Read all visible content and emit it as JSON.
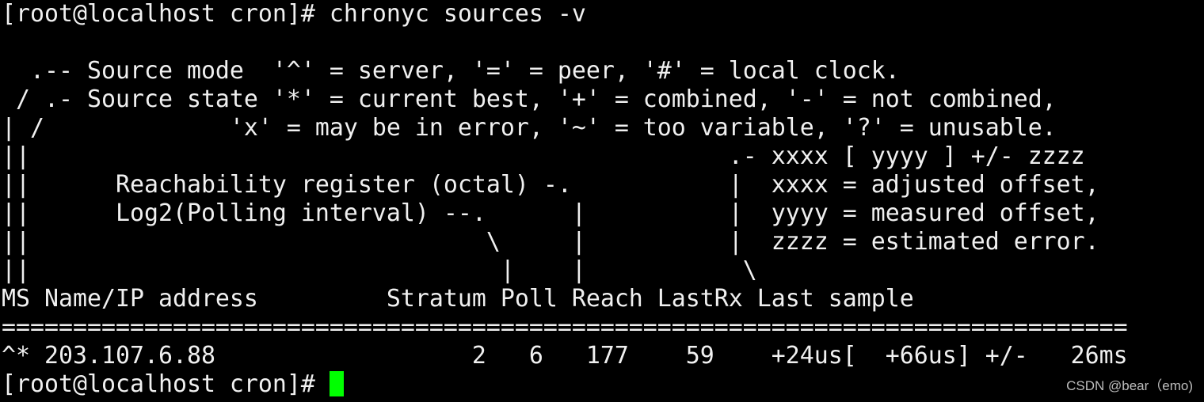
{
  "terminal": {
    "lines": [
      "[root@localhost cron]# chronyc sources -v",
      "",
      "  .-- Source mode  '^' = server, '=' = peer, '#' = local clock.",
      " / .- Source state '*' = current best, '+' = combined, '-' = not combined,",
      "| /             'x' = may be in error, '~' = too variable, '?' = unusable.",
      "||                                                 .- xxxx [ yyyy ] +/- zzzz",
      "||      Reachability register (octal) -.           |  xxxx = adjusted offset,",
      "||      Log2(Polling interval) --.      |          |  yyyy = measured offset,",
      "||                                \\     |          |  zzzz = estimated error.",
      "||                                 |    |           \\",
      "MS Name/IP address         Stratum Poll Reach LastRx Last sample",
      "===============================================================================",
      "^* 203.107.6.88                  2   6   177    59    +24us[  +66us] +/-   26ms"
    ],
    "prompt": "[root@localhost cron]# ",
    "cursor_color": "#00ff00",
    "text_color": "#f0f0f0",
    "background": "#000000"
  },
  "watermark": "CSDN @bear（emo)"
}
